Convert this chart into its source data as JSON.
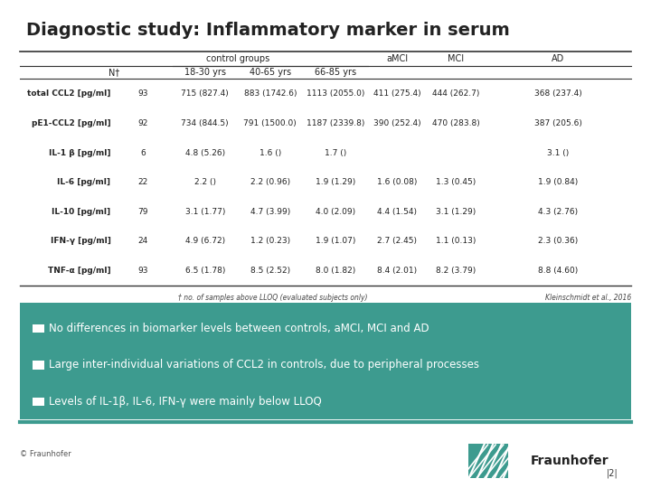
{
  "title": "Diagnostic study: Inflammatory marker in serum",
  "bg_color": "#ffffff",
  "teal_color": "#3d9b8f",
  "dark_teal": "#2a6b63",
  "table_header_top": [
    "",
    "N†",
    "control groups",
    "",
    "",
    "aMCI",
    "MCI",
    "AD"
  ],
  "table_header_sub": [
    "",
    "",
    "18-30 yrs",
    "40-65 yrs",
    "66-85 yrs",
    "",
    "",
    ""
  ],
  "rows": [
    [
      "total CCL2 [pg/ml]",
      "93",
      "715 (827.4)",
      "883 (1742.6)",
      "1113 (2055.0)",
      "411 (275.4)",
      "444 (262.7)",
      "368 (237.4)"
    ],
    [
      "pE1-CCL2 [pg/ml]",
      "92",
      "734 (844.5)",
      "791 (1500.0)",
      "1187 (2339.8)",
      "390 (252.4)",
      "470 (283.8)",
      "387 (205.6)"
    ],
    [
      "IL-1 β [pg/ml]",
      "6",
      "4.8 (5.26)",
      "1.6 ()",
      "1.7 ()",
      "",
      "",
      "3.1 ()"
    ],
    [
      "IL-6 [pg/ml]",
      "22",
      "2.2 ()",
      "2.2 (0.96)",
      "1.9 (1.29)",
      "1.6 (0.08)",
      "1.3 (0.45)",
      "1.9 (0.84)"
    ],
    [
      "IL-10 [pg/ml]",
      "79",
      "3.1 (1.77)",
      "4.7 (3.99)",
      "4.0 (2.09)",
      "4.4 (1.54)",
      "3.1 (1.29)",
      "4.3 (2.76)"
    ],
    [
      "IFN-γ [pg/ml]",
      "24",
      "4.9 (6.72)",
      "1.2 (0.23)",
      "1.9 (1.07)",
      "2.7 (2.45)",
      "1.1 (0.13)",
      "2.3 (0.36)"
    ],
    [
      "TNF-α [pg/ml]",
      "93",
      "6.5 (1.78)",
      "8.5 (2.52)",
      "8.0 (1.82)",
      "8.4 (2.01)",
      "8.2 (3.79)",
      "8.8 (4.60)"
    ]
  ],
  "footnote": "† no. of samples above LLOQ (evaluated subjects only)",
  "citation": "Kleinschmidt et al., 2016",
  "bullets": [
    "No differences in biomarker levels between controls, aMCI, MCI and AD",
    "Large inter-individual variations of CCL2 in controls, due to peripheral processes",
    "Levels of IL-1β, IL-6, IFN-γ were mainly below LLOQ"
  ],
  "footer_left": "© Fraunhofer",
  "page_num": "|2|"
}
